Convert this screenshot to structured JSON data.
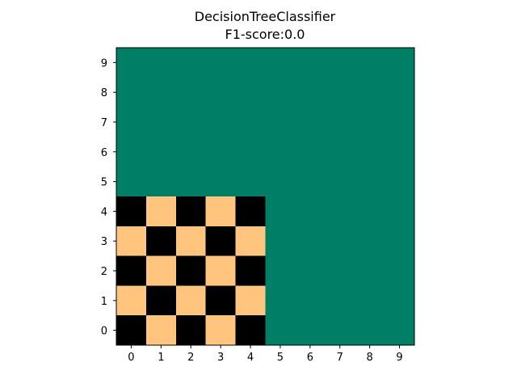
{
  "chart_data": {
    "type": "heatmap",
    "title_lines": [
      "DecisionTreeClassifier",
      "F1-score:0.0"
    ],
    "xlabel": "",
    "ylabel": "",
    "x_ticks": [
      "0",
      "1",
      "2",
      "3",
      "4",
      "5",
      "6",
      "7",
      "8",
      "9"
    ],
    "y_ticks": [
      "0",
      "1",
      "2",
      "3",
      "4",
      "5",
      "6",
      "7",
      "8",
      "9"
    ],
    "xlim": [
      -0.5,
      9.5
    ],
    "ylim": [
      -0.5,
      9.5
    ],
    "grid": false,
    "colors": {
      "background": "#007f66",
      "class_a": "#000000",
      "class_b": "#ffc57f"
    },
    "cell_grid": {
      "x_range": [
        0,
        4
      ],
      "y_range": [
        0,
        4
      ],
      "pattern": "checkerboard",
      "rule": "cell (x, y) uses class_a when (x + y) is even, class_b when odd"
    }
  }
}
